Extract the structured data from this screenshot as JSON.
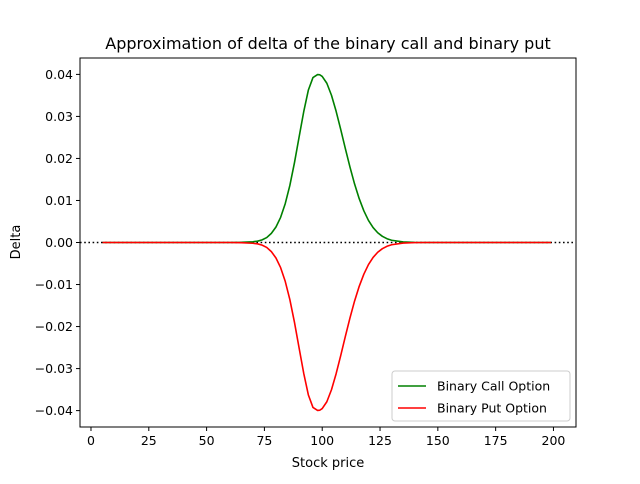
{
  "chart_data": {
    "type": "line",
    "title": "Approximation of delta of the binary call and binary put",
    "xlabel": "Stock price",
    "ylabel": "Delta",
    "xlim": [
      -4.75,
      209.75
    ],
    "ylim": [
      -0.0439,
      0.0439
    ],
    "xticks": [
      0,
      25,
      50,
      75,
      100,
      125,
      150,
      175,
      200
    ],
    "yticks": [
      -0.04,
      -0.03,
      -0.02,
      -0.01,
      0.0,
      0.01,
      0.02,
      0.03,
      0.04
    ],
    "ytick_labels": [
      "−0.04",
      "−0.03",
      "−0.02",
      "−0.01",
      "0.00",
      "0.01",
      "0.02",
      "0.03",
      "0.04"
    ],
    "xtick_labels": [
      "0",
      "25",
      "50",
      "75",
      "100",
      "125",
      "150",
      "175",
      "200"
    ],
    "grid": false,
    "legend_position": "lower-right",
    "reference_line": {
      "y": 0,
      "style": "dotted",
      "color": "#000000"
    },
    "x": [
      5,
      10,
      15,
      20,
      25,
      30,
      35,
      40,
      45,
      50,
      55,
      60,
      65,
      70,
      72,
      74,
      76,
      78,
      80,
      82,
      84,
      86,
      88,
      90,
      92,
      94,
      96,
      98,
      99,
      100,
      102,
      104,
      106,
      108,
      110,
      112,
      114,
      116,
      118,
      120,
      122,
      124,
      126,
      128,
      130,
      135,
      140,
      145,
      150,
      160,
      170,
      180,
      190,
      199
    ],
    "series": [
      {
        "name": "Binary Call Option",
        "color": "#008000",
        "values": [
          0.0,
          0.0,
          0.0,
          0.0,
          0.0,
          0.0,
          0.0,
          0.0,
          0.0,
          0.0,
          0.0,
          0.0,
          4e-05,
          0.00018,
          0.00031,
          0.00062,
          0.00117,
          0.00217,
          0.00368,
          0.00597,
          0.00923,
          0.01357,
          0.01899,
          0.02511,
          0.03112,
          0.03625,
          0.03925,
          0.03995,
          0.03989,
          0.03951,
          0.03789,
          0.03504,
          0.03125,
          0.0269,
          0.02235,
          0.01794,
          0.01391,
          0.01042,
          0.00754,
          0.00525,
          0.00355,
          0.00232,
          0.00147,
          0.0009,
          0.00054,
          0.00013,
          3e-05,
          0.0,
          0.0,
          0.0,
          0.0,
          0.0,
          0.0,
          0.0
        ]
      },
      {
        "name": "Binary Put Option",
        "color": "#ff0000",
        "values": [
          0.0,
          0.0,
          0.0,
          0.0,
          0.0,
          0.0,
          0.0,
          0.0,
          0.0,
          0.0,
          0.0,
          0.0,
          -4e-05,
          -0.00018,
          -0.00031,
          -0.00062,
          -0.00117,
          -0.00217,
          -0.00368,
          -0.00597,
          -0.00923,
          -0.01357,
          -0.01899,
          -0.02511,
          -0.03112,
          -0.03625,
          -0.03925,
          -0.03995,
          -0.03989,
          -0.03951,
          -0.03789,
          -0.03504,
          -0.03125,
          -0.0269,
          -0.02235,
          -0.01794,
          -0.01391,
          -0.01042,
          -0.00754,
          -0.00525,
          -0.00355,
          -0.00232,
          -0.00147,
          -0.0009,
          -0.00054,
          -0.00013,
          -3e-05,
          0.0,
          0.0,
          0.0,
          0.0,
          0.0,
          0.0,
          0.0
        ]
      }
    ]
  }
}
